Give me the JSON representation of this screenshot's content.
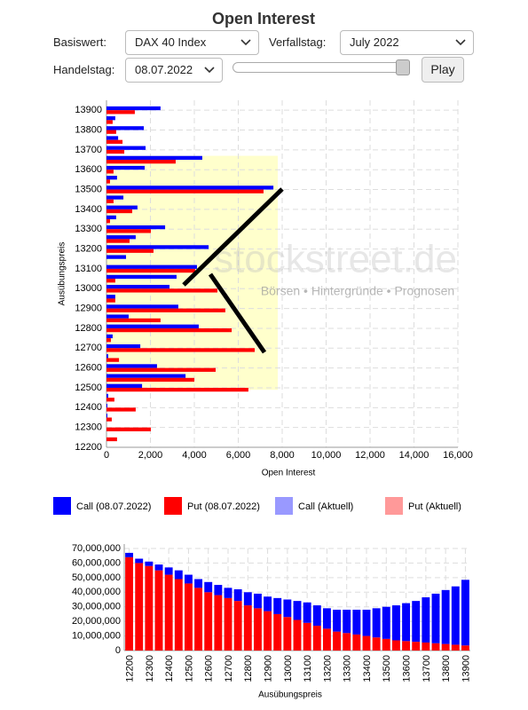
{
  "header": {
    "title": "Open Interest"
  },
  "controls": {
    "basiswert_label": "Basiswert:",
    "basiswert": "DAX 40 Index",
    "verfallstag_label": "Verfallstag:",
    "verfallstag": "July 2022",
    "handelstag_label": "Handelstag:",
    "handelstag": "08.07.2022",
    "play": "Play"
  },
  "watermark": {
    "name": "stockstreet.de",
    "tagline": "Börsen • Hintergründe • Prognosen"
  },
  "chart_data": [
    {
      "type": "hbar",
      "x_label": "Open Interest",
      "y_label": "Ausübungspreis",
      "y": [
        12200,
        12250,
        12300,
        12350,
        12400,
        12450,
        12500,
        12550,
        12600,
        12650,
        12700,
        12750,
        12800,
        12850,
        12900,
        12950,
        13000,
        13050,
        13100,
        13150,
        13200,
        13250,
        13300,
        13350,
        13400,
        13450,
        13500,
        13550,
        13600,
        13650,
        13700,
        13750,
        13800,
        13850,
        13900
      ],
      "series": [
        {
          "name": "Call (08.07.2022)",
          "color": "#0000ff",
          "values": [
            0,
            0,
            0,
            40,
            40,
            80,
            1620,
            3600,
            2300,
            80,
            1540,
            280,
            4200,
            1010,
            3270,
            400,
            2870,
            3190,
            4120,
            890,
            4650,
            1330,
            2670,
            440,
            1410,
            770,
            7600,
            480,
            1740,
            4360,
            1780,
            530,
            1700,
            400,
            2460
          ]
        },
        {
          "name": "Put (08.07.2022)",
          "color": "#ff0000",
          "values": [
            0,
            480,
            2020,
            240,
            1330,
            360,
            6460,
            4000,
            4970,
            570,
            6750,
            200,
            5700,
            2460,
            5410,
            400,
            5050,
            400,
            4040,
            0,
            2140,
            1050,
            2020,
            160,
            1170,
            320,
            7150,
            160,
            320,
            3150,
            810,
            730,
            440,
            280,
            1290
          ]
        }
      ],
      "legend_extra": [
        {
          "name": "Call (Aktuell)",
          "color": "#9999ff"
        },
        {
          "name": "Put (Aktuell)",
          "color": "#ff9999"
        }
      ],
      "highlight_x": [
        0,
        7800
      ],
      "highlight_y": [
        12490,
        13670
      ],
      "highlight_color": "#ffffcc",
      "xlim": [
        0,
        16000
      ],
      "xticks": [
        0,
        {
          "value": 2000,
          "label": "2,000"
        },
        {
          "value": 4000,
          "label": "4,000"
        },
        {
          "value": 6000,
          "label": "6,000"
        },
        {
          "value": 8000,
          "label": "8,000"
        },
        {
          "value": 10000,
          "label": "10,000"
        },
        {
          "value": 12000,
          "label": "12,000"
        },
        {
          "value": 14000,
          "label": "14,000"
        },
        {
          "value": 16000,
          "label": "16,000"
        }
      ],
      "ylim": [
        12200,
        13950
      ],
      "yticks": [
        12200,
        12300,
        12400,
        12500,
        12600,
        12700,
        12800,
        12900,
        13000,
        13100,
        13200,
        13300,
        13400,
        13500,
        13600,
        13700,
        13800,
        13900
      ],
      "grid": true
    },
    {
      "type": "stacked_bar",
      "x_label": "Ausübungspreis",
      "categories": [
        12200,
        null,
        12300,
        null,
        12400,
        null,
        12500,
        null,
        12600,
        null,
        12700,
        null,
        12800,
        null,
        12900,
        null,
        13000,
        null,
        13100,
        null,
        13200,
        null,
        13300,
        null,
        13400,
        null,
        13500,
        null,
        13600,
        null,
        13700,
        null,
        13800,
        null,
        13900
      ],
      "series": [
        {
          "color": "#ff0000",
          "values": [
            64000000,
            60000000,
            58000000,
            55000000,
            52000000,
            49000000,
            46000000,
            43000000,
            40000000,
            38000000,
            36000000,
            34000000,
            31000000,
            29000000,
            27000000,
            25000000,
            23000000,
            21000000,
            19000000,
            17000000,
            15000000,
            13000000,
            12000000,
            11000000,
            10000000,
            9000000,
            8000000,
            7000000,
            6500000,
            6000000,
            5500000,
            5000000,
            4500000,
            4000000,
            3500000
          ]
        },
        {
          "color": "#0000ff",
          "values": [
            3000000,
            3000000,
            3000000,
            4000000,
            5000000,
            6000000,
            6000000,
            6000000,
            7000000,
            7000000,
            7000000,
            8000000,
            9000000,
            10000000,
            10000000,
            11000000,
            12000000,
            13000000,
            14000000,
            14000000,
            14000000,
            15000000,
            16000000,
            17000000,
            18000000,
            20000000,
            22000000,
            24000000,
            26000000,
            28000000,
            31000000,
            34000000,
            37000000,
            40000000,
            45000000
          ]
        }
      ],
      "ylim": [
        0,
        70000000
      ],
      "yticks": [
        0,
        {
          "value": 10000000,
          "label": "10,000,000"
        },
        {
          "value": 20000000,
          "label": "20,000,000"
        },
        {
          "value": 30000000,
          "label": "30,000,000"
        },
        {
          "value": 40000000,
          "label": "40,000,000"
        },
        {
          "value": 50000000,
          "label": "50,000,000"
        },
        {
          "value": 60000000,
          "label": "60,000,000"
        },
        {
          "value": 70000000,
          "label": "70,000,000"
        }
      ],
      "grid": true
    }
  ]
}
